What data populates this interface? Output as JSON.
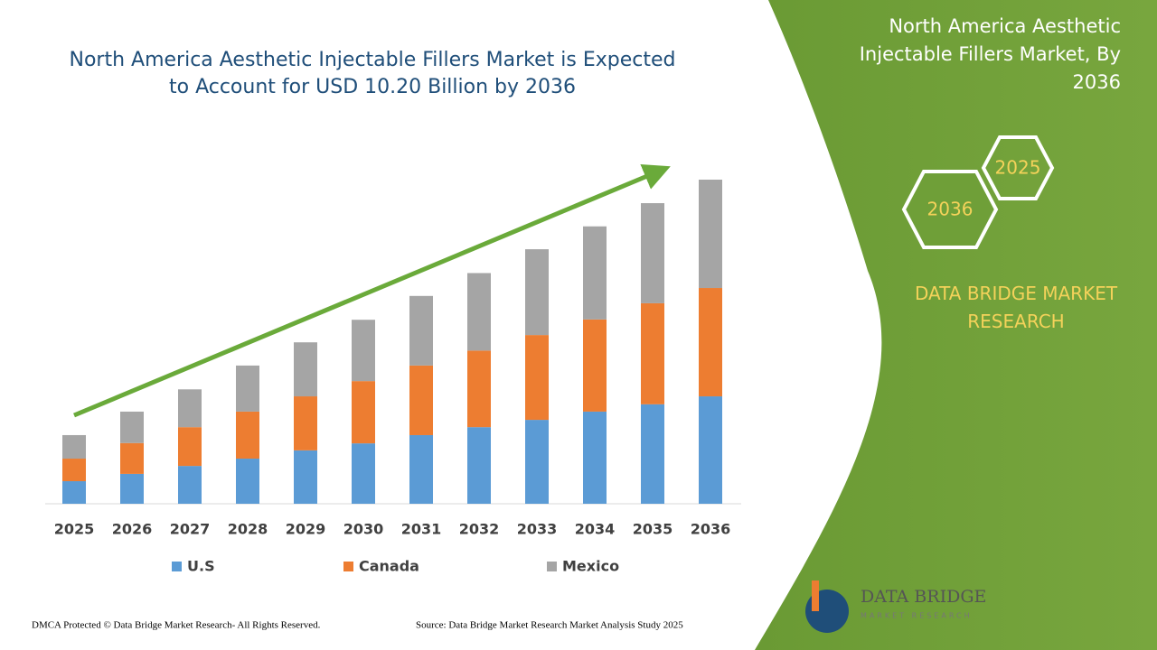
{
  "chart_data": {
    "type": "stacked-bar",
    "title": "North America Aesthetic Injectable Fillers Market is Expected to Account for USD 10.20 Billion by 2036",
    "categories": [
      "2025",
      "2026",
      "2027",
      "2028",
      "2029",
      "2030",
      "2031",
      "2032",
      "2033",
      "2034",
      "2035",
      "2036"
    ],
    "series": [
      {
        "name": "U.S",
        "color": "#5b9bd5",
        "values": [
          0.71,
          0.94,
          1.19,
          1.42,
          1.68,
          1.9,
          2.16,
          2.41,
          2.64,
          2.9,
          3.13,
          3.38
        ]
      },
      {
        "name": "Canada",
        "color": "#ed7d31",
        "values": [
          0.71,
          0.97,
          1.22,
          1.48,
          1.7,
          1.96,
          2.19,
          2.41,
          2.67,
          2.9,
          3.18,
          3.41
        ]
      },
      {
        "name": "Mexico",
        "color": "#a5a5a5",
        "values": [
          0.74,
          0.99,
          1.19,
          1.45,
          1.7,
          1.93,
          2.19,
          2.44,
          2.7,
          2.93,
          3.15,
          3.41
        ]
      }
    ]
  },
  "panel": {
    "title": "North America Aesthetic Injectable Fillers Market, By 2036",
    "hex_back": "2025",
    "hex_front": "2036",
    "brand": "DATA BRIDGE MARKET RESEARCH",
    "logo": "DATA BRIDGE",
    "logo_sub": "MARKET RESEARCH"
  },
  "footer": {
    "left": "DMCA Protected © Data Bridge Market Research- All Rights Reserved.",
    "right": "Source: Data Bridge Market Research Market Analysis Study 2025"
  }
}
